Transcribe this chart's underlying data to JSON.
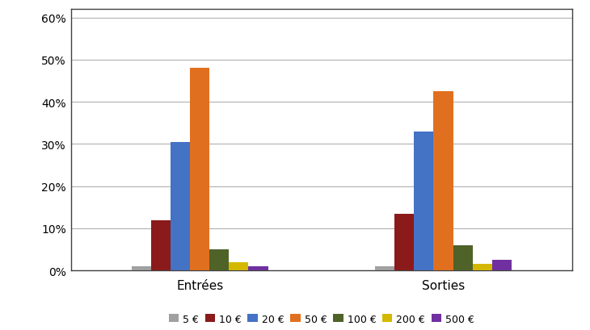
{
  "categories": [
    "Entrées",
    "Sorties"
  ],
  "series": [
    {
      "label": "5 €",
      "color": "#a0a0a0",
      "values": [
        1.0,
        1.0
      ]
    },
    {
      "label": "10 €",
      "color": "#8b1a1a",
      "values": [
        12.0,
        13.5
      ]
    },
    {
      "label": "20 €",
      "color": "#4472c4",
      "values": [
        30.5,
        33.0
      ]
    },
    {
      "label": "50 €",
      "color": "#e07020",
      "values": [
        48.0,
        42.5
      ]
    },
    {
      "label": "100 €",
      "color": "#4f6228",
      "values": [
        5.0,
        6.0
      ]
    },
    {
      "label": "200 €",
      "color": "#d4b800",
      "values": [
        2.0,
        1.5
      ]
    },
    {
      "label": "500 €",
      "color": "#7030a0",
      "values": [
        1.0,
        2.5
      ]
    }
  ],
  "ylim": [
    0,
    0.62
  ],
  "yticks": [
    0.0,
    0.1,
    0.2,
    0.3,
    0.4,
    0.5,
    0.6
  ],
  "yticklabels": [
    "0%",
    "10%",
    "20%",
    "30%",
    "40%",
    "50%",
    "60%"
  ],
  "background_color": "#ffffff",
  "grid_color": "#b0b0b0",
  "spine_color": "#404040",
  "legend_fontsize": 9,
  "tick_fontsize": 10,
  "category_fontsize": 11
}
